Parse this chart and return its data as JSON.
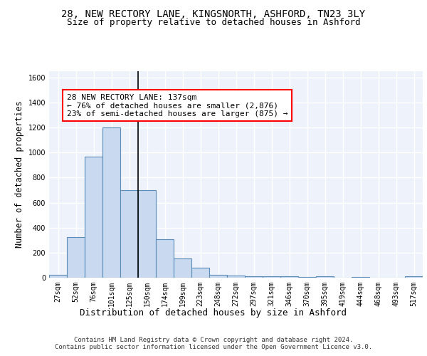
{
  "title1": "28, NEW RECTORY LANE, KINGSNORTH, ASHFORD, TN23 3LY",
  "title2": "Size of property relative to detached houses in Ashford",
  "xlabel": "Distribution of detached houses by size in Ashford",
  "ylabel": "Number of detached properties",
  "categories": [
    "27sqm",
    "52sqm",
    "76sqm",
    "101sqm",
    "125sqm",
    "150sqm",
    "174sqm",
    "199sqm",
    "223sqm",
    "248sqm",
    "272sqm",
    "297sqm",
    "321sqm",
    "346sqm",
    "370sqm",
    "395sqm",
    "419sqm",
    "444sqm",
    "468sqm",
    "493sqm",
    "517sqm"
  ],
  "values": [
    25,
    325,
    970,
    1200,
    700,
    700,
    305,
    155,
    80,
    25,
    15,
    10,
    10,
    10,
    5,
    10,
    0,
    5,
    0,
    0,
    10
  ],
  "bar_color": "#c9d9ef",
  "bar_edge_color": "#5b8db8",
  "bg_color": "#eef2fb",
  "grid_color": "#ffffff",
  "annotation_text": "28 NEW RECTORY LANE: 137sqm\n← 76% of detached houses are smaller (2,876)\n23% of semi-detached houses are larger (875) →",
  "ylim": [
    0,
    1650
  ],
  "yticks": [
    0,
    200,
    400,
    600,
    800,
    1000,
    1200,
    1400,
    1600
  ],
  "footnote": "Contains HM Land Registry data © Crown copyright and database right 2024.\nContains public sector information licensed under the Open Government Licence v3.0.",
  "title1_fontsize": 10,
  "title2_fontsize": 9,
  "xlabel_fontsize": 9,
  "ylabel_fontsize": 8.5,
  "tick_fontsize": 7,
  "annot_fontsize": 8,
  "footnote_fontsize": 6.5
}
